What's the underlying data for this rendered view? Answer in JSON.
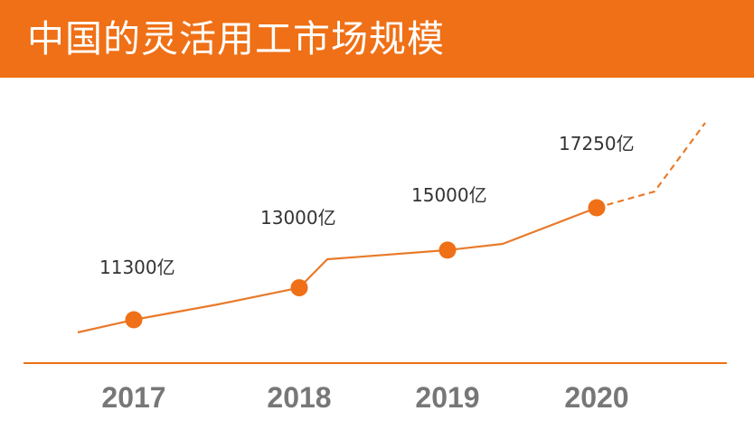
{
  "colors": {
    "accent": "#ef7016",
    "line": "#e87a2a",
    "text": "#333333",
    "axis_text": "#777777"
  },
  "chart_data": {
    "type": "line",
    "title": "中国的灵活用工市场规模",
    "categories": [
      "2017",
      "2018",
      "2019",
      "2020"
    ],
    "series": [
      {
        "values": [
          11300,
          13000,
          15000,
          17250
        ],
        "data_labels": [
          "11300亿",
          "13000亿",
          "15000亿",
          "17250亿"
        ]
      }
    ],
    "projection": "dashed line continues upward after 2020",
    "grid": false,
    "legend": "none"
  }
}
